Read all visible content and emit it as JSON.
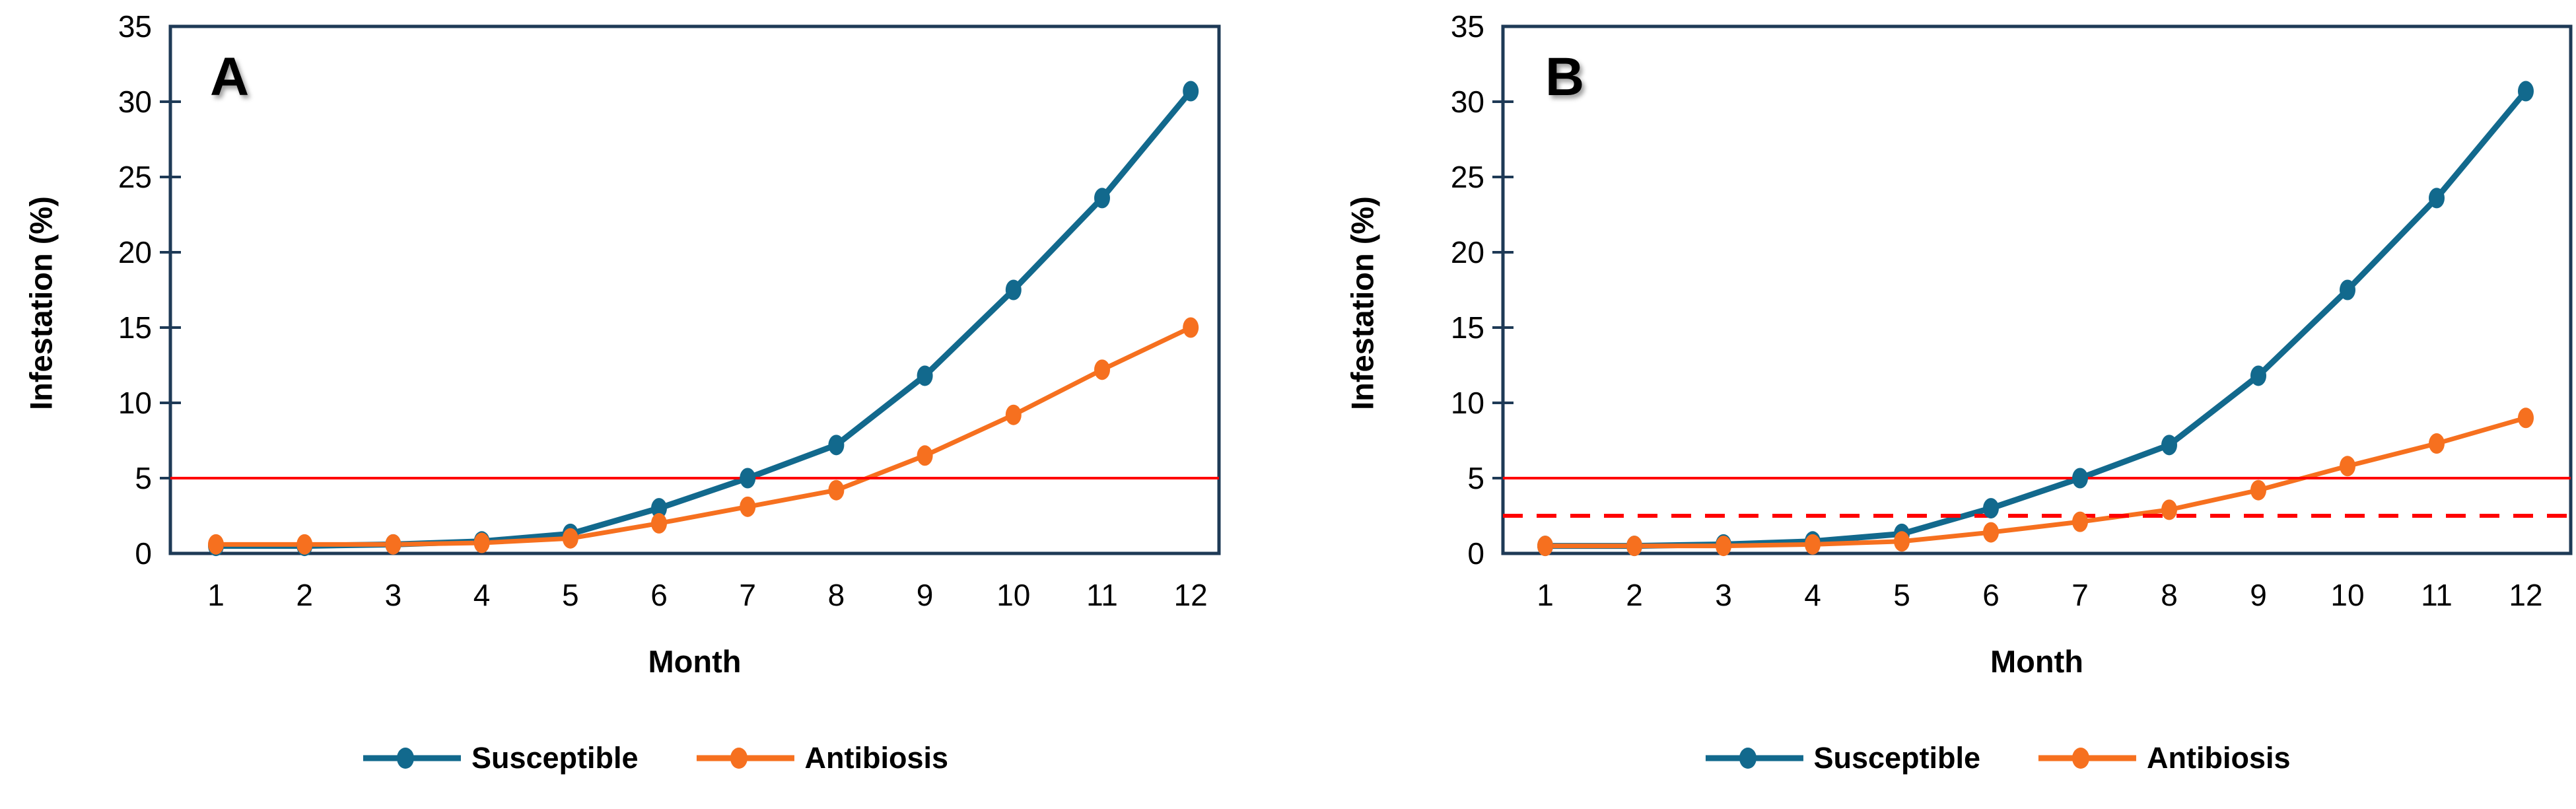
{
  "figure": {
    "background": "#ffffff",
    "axis_color": "#1E3A56",
    "text_color": "#000000",
    "threshold_color": "#FF0000"
  },
  "chart_data": [
    {
      "type": "line",
      "panel": "A",
      "title": "",
      "xlabel": "Month",
      "ylabel": "Infestation (%)",
      "x": [
        1,
        2,
        3,
        4,
        5,
        6,
        7,
        8,
        9,
        10,
        11,
        12
      ],
      "ylim": [
        0,
        35
      ],
      "y_ticks": [
        0,
        5,
        10,
        15,
        20,
        25,
        30,
        35
      ],
      "grid": false,
      "legend_position": "bottom",
      "series": [
        {
          "name": "Susceptible",
          "color": "#12698D",
          "values": [
            0.5,
            0.5,
            0.6,
            0.8,
            1.3,
            3.0,
            5.0,
            7.2,
            11.8,
            17.5,
            23.6,
            30.7
          ]
        },
        {
          "name": "Antibiosis",
          "color": "#F6701F",
          "values": [
            0.6,
            0.6,
            0.6,
            0.7,
            1.0,
            2.0,
            3.1,
            4.2,
            6.5,
            9.2,
            12.2,
            15.0
          ]
        }
      ],
      "reference_lines": [
        {
          "y": 5,
          "style": "solid",
          "color": "#FF0000"
        }
      ]
    },
    {
      "type": "line",
      "panel": "B",
      "title": "",
      "xlabel": "Month",
      "ylabel": "Infestation (%)",
      "x": [
        1,
        2,
        3,
        4,
        5,
        6,
        7,
        8,
        9,
        10,
        11,
        12
      ],
      "ylim": [
        0,
        35
      ],
      "y_ticks": [
        0,
        5,
        10,
        15,
        20,
        25,
        30,
        35
      ],
      "grid": false,
      "legend_position": "bottom",
      "series": [
        {
          "name": "Susceptible",
          "color": "#12698D",
          "values": [
            0.5,
            0.5,
            0.6,
            0.8,
            1.3,
            3.0,
            5.0,
            7.2,
            11.8,
            17.5,
            23.6,
            30.7
          ]
        },
        {
          "name": "Antibiosis",
          "color": "#F6701F",
          "values": [
            0.5,
            0.5,
            0.5,
            0.6,
            0.8,
            1.4,
            2.1,
            2.9,
            4.2,
            5.8,
            7.3,
            9.0
          ]
        }
      ],
      "reference_lines": [
        {
          "y": 5,
          "style": "solid",
          "color": "#FF0000"
        },
        {
          "y": 2.5,
          "style": "dashed",
          "color": "#FF0000"
        }
      ]
    }
  ]
}
